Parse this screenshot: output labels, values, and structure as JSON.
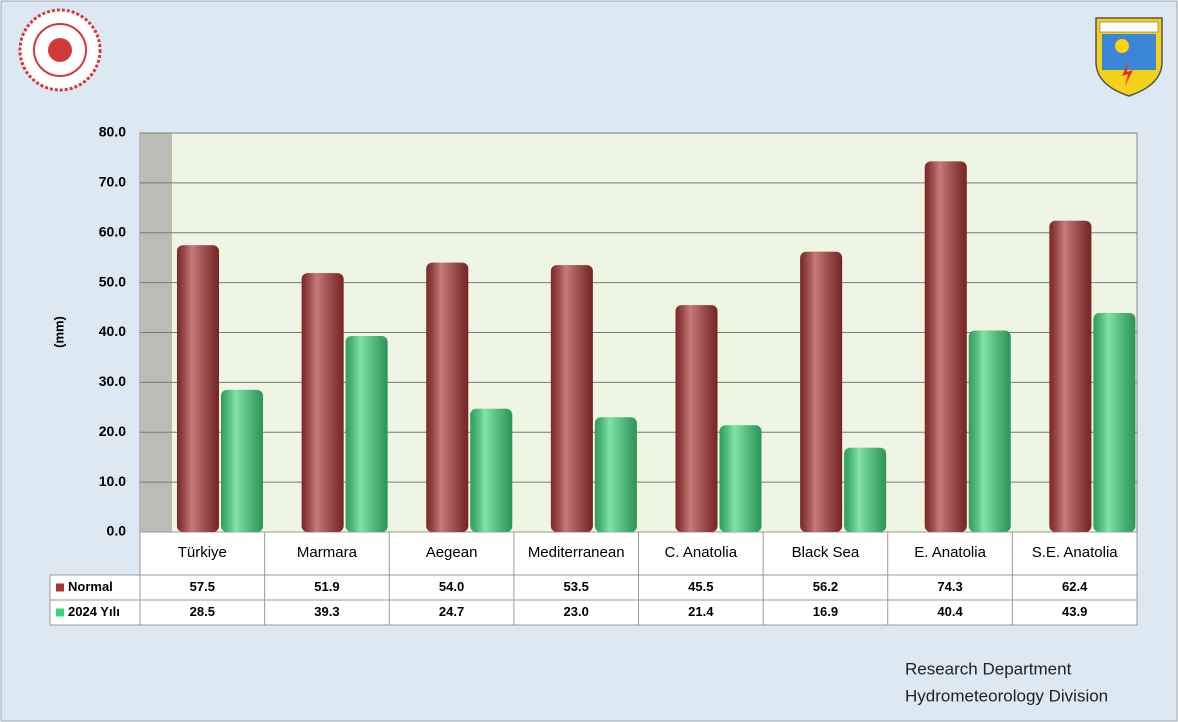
{
  "chart_data": {
    "type": "bar",
    "y_label": "(mm)",
    "categories": [
      "Türkiye",
      "Marmara",
      "Aegean",
      "Mediterranean",
      "C. Anatolia",
      "Black Sea",
      "E. Anatolia",
      "S.E. Anatolia"
    ],
    "series": [
      {
        "name": "Normal",
        "color": "#a83434",
        "values": [
          57.5,
          51.9,
          54.0,
          53.5,
          45.5,
          56.2,
          74.3,
          62.4
        ],
        "value_labels": [
          "57.5",
          "51.9",
          "54.0",
          "53.5",
          "45.5",
          "56.2",
          "74.3",
          "62.4"
        ]
      },
      {
        "name": "2024 Yılı",
        "color": "#3fd47c",
        "values": [
          28.5,
          39.3,
          24.7,
          23.0,
          21.4,
          16.9,
          40.4,
          43.9
        ],
        "value_labels": [
          "28.5",
          "39.3",
          "24.7",
          "23.0",
          "21.4",
          "16.9",
          "40.4",
          "43.9"
        ]
      }
    ],
    "ylim": [
      0,
      80
    ],
    "yticks": [
      {
        "value": 0,
        "label": "0.0"
      },
      {
        "value": 10,
        "label": "10.0"
      },
      {
        "value": 20,
        "label": "20.0"
      },
      {
        "value": 30,
        "label": "30.0"
      },
      {
        "value": 40,
        "label": "40.0"
      },
      {
        "value": 50,
        "label": "50.0"
      },
      {
        "value": 60,
        "label": "60.0"
      },
      {
        "value": 70,
        "label": "70.0"
      },
      {
        "value": 80,
        "label": "80.0"
      }
    ],
    "grid": true,
    "footer": [
      "Research Department",
      "Hydrometeorology Division"
    ]
  }
}
